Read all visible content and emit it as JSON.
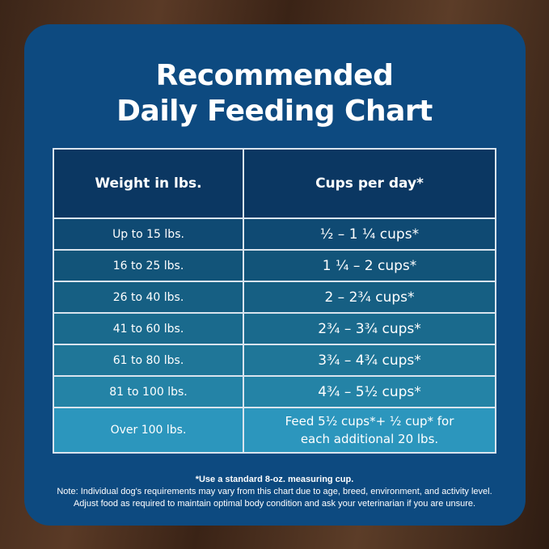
{
  "title_line1": "Recommended",
  "title_line2": "Daily Feeding Chart",
  "table": {
    "headers": [
      "Weight in lbs.",
      "Cups per day*"
    ],
    "rows": [
      {
        "weight": "Up to 15 lbs.",
        "cups": "½ – 1 ¼ cups*",
        "color": "#0f4a73"
      },
      {
        "weight": "16 to 25 lbs.",
        "cups": "1 ¼ –  2 cups*",
        "color": "#125479"
      },
      {
        "weight": "26 to 40 lbs.",
        "cups": "2 – 2¾ cups*",
        "color": "#165f83"
      },
      {
        "weight": "41 to 60 lbs.",
        "cups": "2¾ – 3¾ cups*",
        "color": "#1a6a8d"
      },
      {
        "weight": "61 to 80 lbs.",
        "cups": "3¾ – 4¾ cups*",
        "color": "#1f7698"
      },
      {
        "weight": "81 to 100 lbs.",
        "cups": "4¾ – 5½ cups*",
        "color": "#2483a6"
      },
      {
        "weight": "Over 100 lbs.",
        "cups": "Feed 5½ cups*+ ½ cup* for",
        "cups2": "each additional 20 lbs.",
        "color": "#2c96bd"
      }
    ]
  },
  "notes": {
    "line1": "*Use a standard 8-oz. measuring cup.",
    "line2": "Note: Individual dog's requirements may vary from this chart due to age, breed, environment, and activity level.",
    "line3": "Adjust food as required to maintain optimal body condition and ask your veterinarian if you are unsure."
  }
}
